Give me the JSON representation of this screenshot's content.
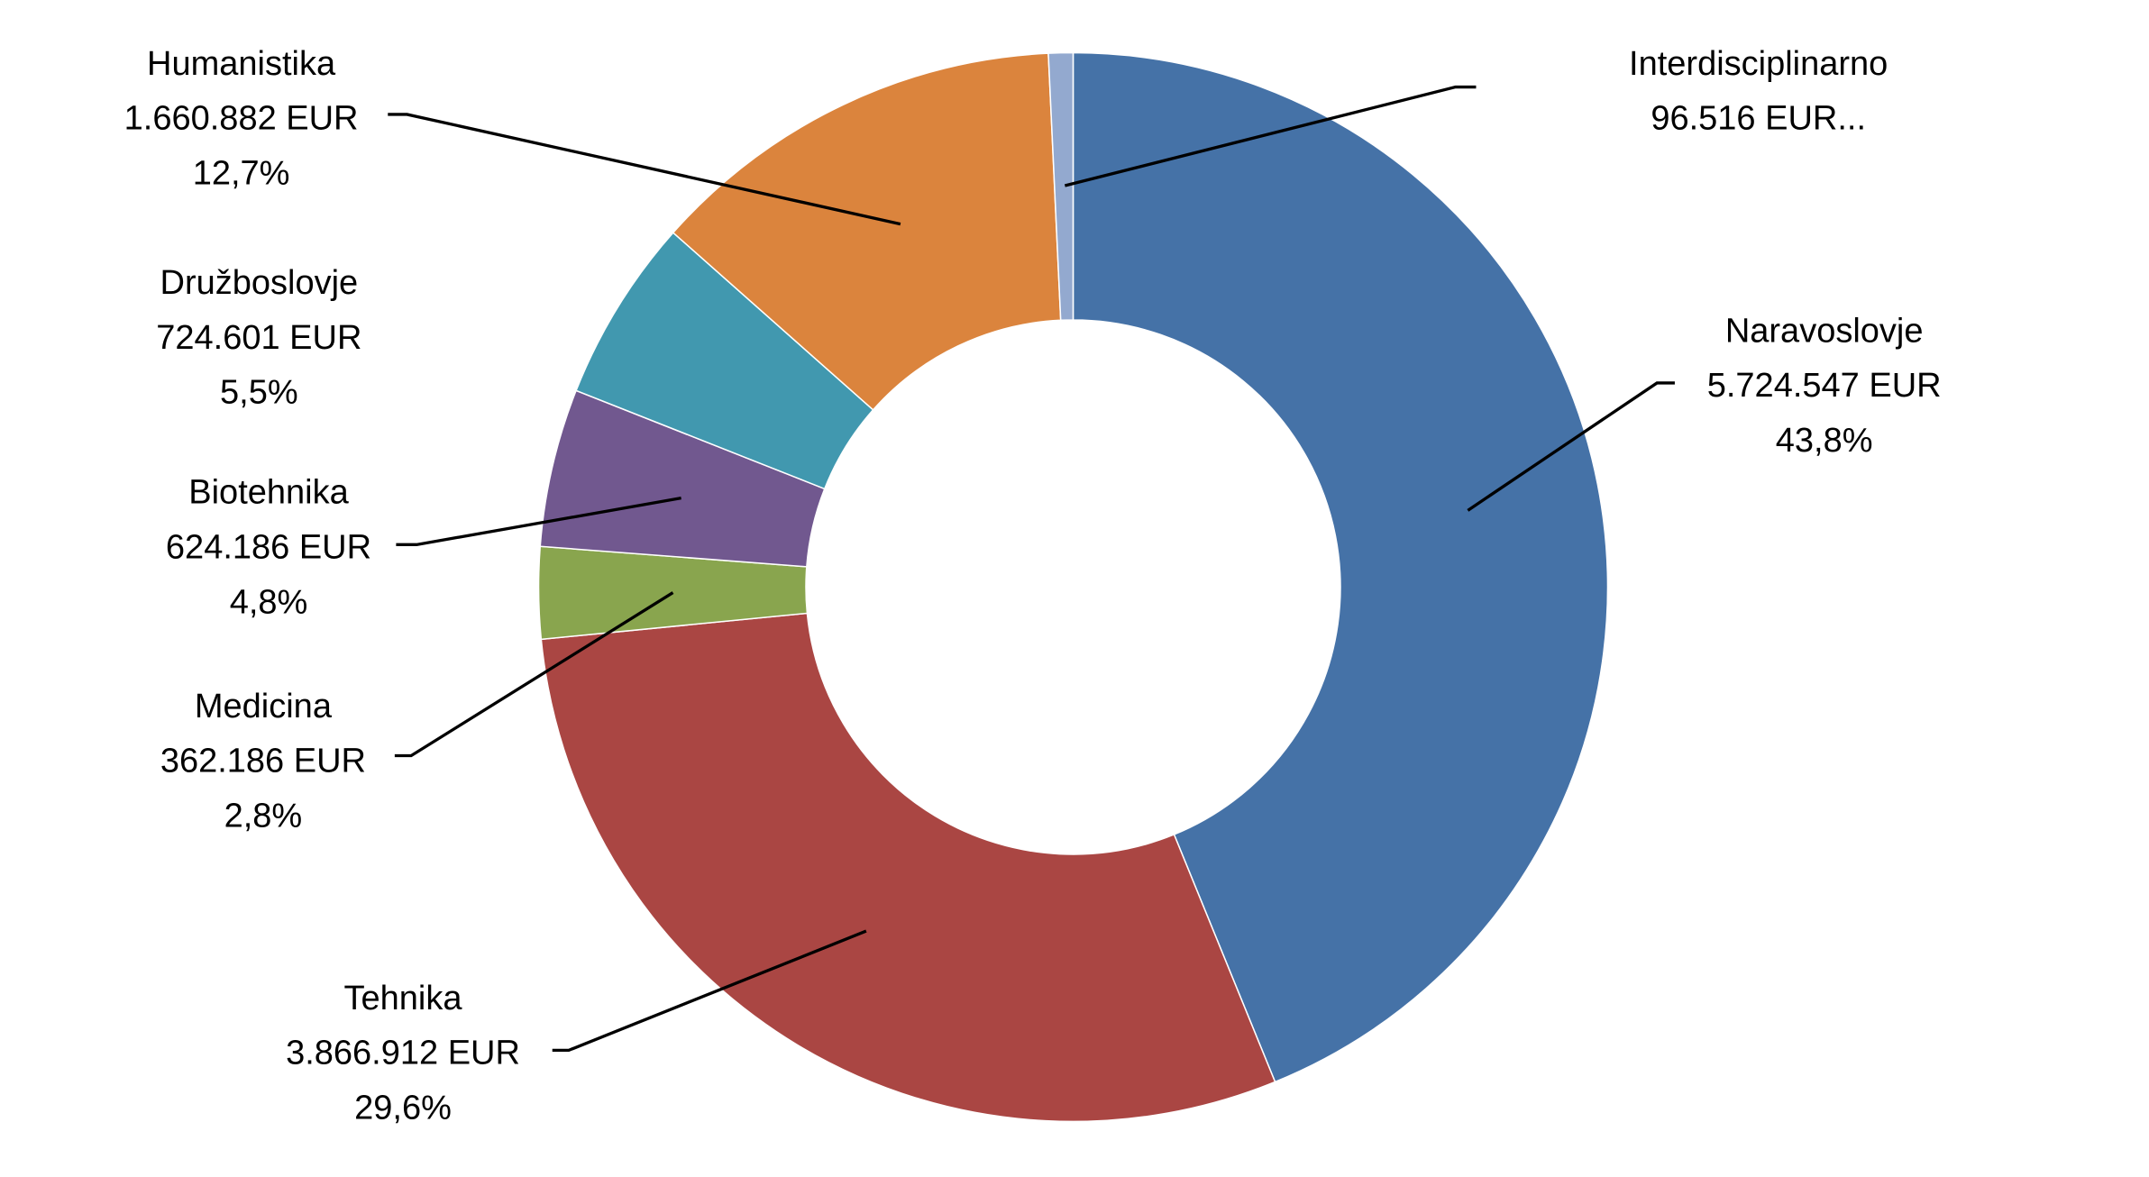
{
  "chart_data": {
    "type": "pie",
    "variant": "doughnut",
    "title": "",
    "legend": "none",
    "currency": "EUR",
    "slices": [
      {
        "name": "Naravoslovje",
        "value": 5724547,
        "value_label": "5.724.547 EUR",
        "percent_label": "43,8%",
        "color": "#4572A7"
      },
      {
        "name": "Tehnika",
        "value": 3866912,
        "value_label": "3.866.912 EUR",
        "percent_label": "29,6%",
        "color": "#AA4643"
      },
      {
        "name": "Medicina",
        "value": 362186,
        "value_label": "362.186 EUR",
        "percent_label": "2,8%",
        "color": "#89A54E"
      },
      {
        "name": "Biotehnika",
        "value": 624186,
        "value_label": "624.186 EUR",
        "percent_label": "4,8%",
        "color": "#71588F"
      },
      {
        "name": "Družboslovje",
        "value": 724601,
        "value_label": "724.601 EUR",
        "percent_label": "5,5%",
        "color": "#4198AF"
      },
      {
        "name": "Humanistika",
        "value": 1660882,
        "value_label": "1.660.882 EUR",
        "percent_label": "12,7%",
        "color": "#DB843D"
      },
      {
        "name": "Interdisciplinarno",
        "value": 96516,
        "value_label": "96.516 EUR...",
        "percent_label": "",
        "color": "#93A9CF"
      }
    ]
  }
}
